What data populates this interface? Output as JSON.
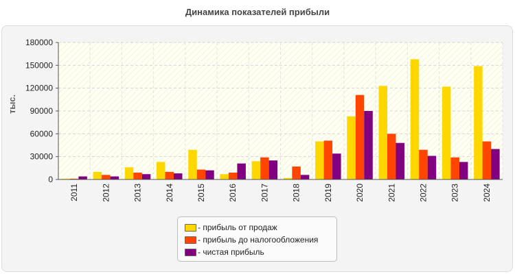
{
  "chart_data": {
    "type": "bar",
    "title": "Динамика показателей прибыли",
    "ylabel": "тыс.",
    "ylim": [
      0,
      180000
    ],
    "yticks": [
      0,
      30000,
      60000,
      90000,
      120000,
      150000,
      180000
    ],
    "grid": true,
    "legend_position": "bottom",
    "categories": [
      "2011",
      "2012",
      "2013",
      "2014",
      "2015",
      "2016",
      "2017",
      "2018",
      "2019",
      "2020",
      "2021",
      "2022",
      "2023",
      "2024"
    ],
    "series": [
      {
        "name": "- прибыль от продаж",
        "color": "#ffd700",
        "values": [
          1000,
          10000,
          16000,
          23000,
          39000,
          7000,
          24000,
          2000,
          50000,
          83000,
          123000,
          158000,
          122000,
          149000
        ]
      },
      {
        "name": "- прибыль до налогообложения",
        "color": "#ff4500",
        "values": [
          1000,
          6000,
          9000,
          10000,
          13000,
          9000,
          29000,
          17000,
          51000,
          111000,
          60000,
          39000,
          29000,
          50000
        ]
      },
      {
        "name": "- чистая прибыль",
        "color": "#800080",
        "values": [
          4000,
          4000,
          7000,
          8000,
          12000,
          21000,
          25000,
          6000,
          34000,
          90000,
          48000,
          31000,
          23000,
          40000
        ]
      }
    ]
  }
}
